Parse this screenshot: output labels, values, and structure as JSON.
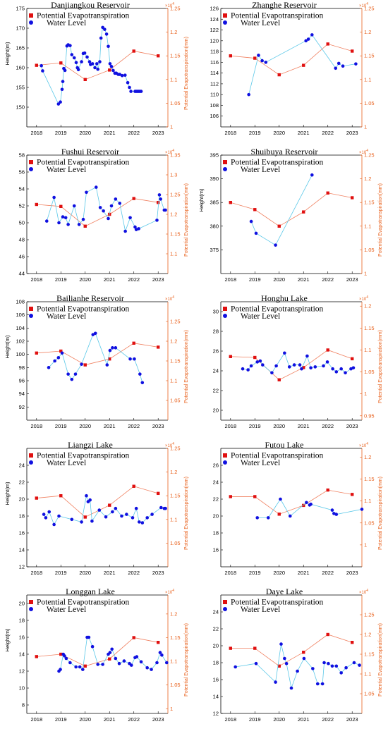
{
  "colors": {
    "water": "#1010e0",
    "water_line": "#5bc8e8",
    "pet": "#e01010",
    "pet_line": "#f08060",
    "right_axis": "#e8601c"
  },
  "chart_data": [
    {
      "type": "line",
      "title": "Danjiangkou Reservoir",
      "ylabel": "Height(m)",
      "y2label": "Potential Evapotranspiration(mm)",
      "y2exponent": "10^4",
      "xlim": [
        2017.6,
        2023.4
      ],
      "xticks": [
        2018,
        2019,
        2020,
        2021,
        2022,
        2023
      ],
      "ylim": [
        145,
        175
      ],
      "yticks": [
        150,
        155,
        160,
        165,
        170,
        175
      ],
      "y2lim": [
        1.0,
        1.25
      ],
      "y2ticks": [
        1,
        1.05,
        1.1,
        1.15,
        1.2,
        1.25
      ],
      "legend": [
        "Potential Evapotranspiration",
        "Water Level"
      ],
      "water_level": {
        "name": "Water Level",
        "x": [
          2018.2,
          2018.25,
          2018.9,
          2018.98,
          2019.05,
          2019.08,
          2019.12,
          2019.17,
          2019.25,
          2019.3,
          2019.38,
          2019.45,
          2019.55,
          2019.63,
          2019.68,
          2019.72,
          2019.85,
          2019.92,
          2019.98,
          2020.08,
          2020.18,
          2020.22,
          2020.3,
          2020.4,
          2020.48,
          2020.52,
          2020.6,
          2020.65,
          2020.72,
          2020.8,
          2020.88,
          2020.95,
          2021.02,
          2021.08,
          2021.15,
          2021.22,
          2021.28,
          2021.36,
          2021.42,
          2021.52,
          2021.64,
          2021.75,
          2021.82,
          2021.88,
          2022.05,
          2022.1,
          2022.15,
          2022.2,
          2022.25,
          2022.3
        ],
        "y": [
          160.5,
          159.2,
          150.8,
          151.3,
          154.5,
          156.5,
          159.8,
          159.3,
          165.5,
          165.8,
          165.6,
          163.3,
          162.5,
          161.3,
          160,
          159.5,
          161.5,
          163.6,
          163.7,
          162.7,
          161.5,
          160.8,
          161,
          160,
          161,
          159.6,
          161.5,
          167.5,
          170.2,
          169.7,
          168.5,
          165.4,
          161,
          160.3,
          159.3,
          158.6,
          158.6,
          158.3,
          158.3,
          158,
          158.1,
          156.2,
          155,
          154,
          154,
          154,
          154,
          154,
          154,
          154
        ]
      },
      "evap": {
        "name": "Potential Evapotranspiration",
        "x": [
          2018.0,
          2019.0,
          2020.0,
          2021.0,
          2022.0,
          2023.0
        ],
        "y": [
          1.13,
          1.135,
          1.1,
          1.12,
          1.16,
          1.15
        ]
      }
    },
    {
      "type": "line",
      "title": "Zhanghe Reservoir",
      "ylabel": "",
      "y2label": "",
      "y2exponent": "10^4",
      "xlim": [
        2017.6,
        2023.4
      ],
      "xticks": [
        2018,
        2019,
        2020,
        2021,
        2022,
        2023
      ],
      "ylim": [
        104,
        126
      ],
      "yticks": [
        106,
        108,
        110,
        112,
        114,
        116,
        118,
        120,
        122,
        124,
        126
      ],
      "y2lim": [
        1.0,
        1.25
      ],
      "y2ticks": [
        1,
        1.05,
        1.1,
        1.15,
        1.2,
        1.25
      ],
      "legend": [
        "Potential Evapotranspiration",
        "Water Level"
      ],
      "water_level": {
        "name": "Water Level",
        "x": [
          2018.75,
          2019.15,
          2019.3,
          2019.45,
          2021.1,
          2021.2,
          2021.35,
          2022.32,
          2022.45,
          2022.62,
          2023.15
        ],
        "y": [
          110,
          117.3,
          116.3,
          116,
          120,
          120.3,
          121.1,
          114.9,
          115.8,
          115.3,
          115.7
        ]
      },
      "evap": {
        "name": "Potential Evapotranspiration",
        "x": [
          2018.0,
          2019.0,
          2020.0,
          2021.0,
          2022.0,
          2023.0
        ],
        "y": [
          1.15,
          1.145,
          1.11,
          1.13,
          1.175,
          1.16
        ]
      }
    },
    {
      "type": "line",
      "title": "Fushui Reservoir",
      "ylabel": "",
      "y2label": "Potential Evapotranspiration(mm)",
      "y2exponent": "10^4",
      "xlim": [
        2017.6,
        2023.4
      ],
      "xticks": [
        2018,
        2019,
        2020,
        2021,
        2022,
        2023
      ],
      "ylim": [
        44,
        58
      ],
      "yticks": [
        44,
        46,
        48,
        50,
        52,
        54,
        56,
        58
      ],
      "y2lim": [
        1.05,
        1.35
      ],
      "y2ticks": [
        1.1,
        1.15,
        1.2,
        1.25,
        1.3,
        1.35
      ],
      "legend": [
        "Potential Evapotranspiration",
        "Water Level"
      ],
      "water_level": {
        "name": "Water Level",
        "x": [
          2018.42,
          2018.72,
          2018.92,
          2019.08,
          2019.2,
          2019.3,
          2019.55,
          2019.75,
          2019.92,
          2020.05,
          2020.45,
          2020.62,
          2020.75,
          2020.95,
          2021.08,
          2021.25,
          2021.42,
          2021.65,
          2021.85,
          2022.05,
          2022.1,
          2022.2,
          2022.95,
          2023.05,
          2023.1,
          2023.25,
          2023.3
        ],
        "y": [
          50.2,
          53,
          50,
          50.7,
          50.6,
          49.8,
          52,
          49.8,
          50.4,
          53.6,
          54.2,
          51.8,
          51.4,
          50.5,
          52,
          52.8,
          52.3,
          49,
          50.6,
          49.5,
          49.2,
          49.3,
          50.3,
          53.3,
          52.8,
          51.5,
          51.5
        ]
      },
      "evap": {
        "name": "Potential Evapotranspiration",
        "x": [
          2018.0,
          2019.0,
          2020.0,
          2021.0,
          2022.0,
          2023.0
        ],
        "y": [
          1.225,
          1.22,
          1.17,
          1.2,
          1.24,
          1.23
        ]
      }
    },
    {
      "type": "line",
      "title": "Shuibuya Reservoir",
      "ylabel": "Height(m)",
      "y2label": "Potential Evapotranspiration(mm)",
      "y2exponent": "10^4",
      "xlim": [
        2017.6,
        2023.4
      ],
      "xticks": [
        2018,
        2019,
        2020,
        2021,
        2022,
        2023
      ],
      "ylim": [
        370,
        395
      ],
      "yticks": [
        375,
        380,
        385,
        390,
        395
      ],
      "y2lim": [
        1.0,
        1.25
      ],
      "y2ticks": [
        1,
        1.05,
        1.1,
        1.15,
        1.2,
        1.25
      ],
      "legend": [
        "Potential Evapotranspiration",
        "Water Level"
      ],
      "water_level": {
        "name": "Water Level",
        "x": [
          2018.85,
          2019.05,
          2019.85,
          2021.35
        ],
        "y": [
          381,
          378.5,
          376,
          390.8
        ]
      },
      "evap": {
        "name": "Potential Evapotranspiration",
        "x": [
          2018.0,
          2019.0,
          2020.0,
          2021.0,
          2022.0,
          2023.0
        ],
        "y": [
          1.15,
          1.135,
          1.1,
          1.13,
          1.17,
          1.16
        ]
      }
    },
    {
      "type": "line",
      "title": "Bailianhe Reservoir",
      "ylabel": "Height(m)",
      "y2label": "Potential Evapotranspiration(mm)",
      "y2exponent": "10^4",
      "xlim": [
        2017.6,
        2023.4
      ],
      "xticks": [
        2018,
        2019,
        2020,
        2021,
        2022,
        2023
      ],
      "ylim": [
        90,
        108
      ],
      "yticks": [
        92,
        94,
        96,
        98,
        100,
        102,
        104,
        106,
        108
      ],
      "y2lim": [
        1.0,
        1.3
      ],
      "y2ticks": [
        1.05,
        1.1,
        1.15,
        1.2,
        1.25
      ],
      "legend": [
        "Potential Evapotranspiration",
        "Water Level"
      ],
      "water_level": {
        "name": "Water Level",
        "x": [
          2018.5,
          2018.75,
          2018.9,
          2019.05,
          2019.3,
          2019.45,
          2019.6,
          2019.85,
          2020.32,
          2020.42,
          2020.9,
          2021.02,
          2021.12,
          2021.25,
          2021.85,
          2022.02,
          2022.25,
          2022.35
        ],
        "y": [
          98,
          99,
          99.5,
          100.2,
          97,
          96.2,
          97,
          98.5,
          103,
          103.2,
          98.4,
          100.6,
          101,
          101,
          99.3,
          99.3,
          97,
          95.7
        ]
      },
      "evap": {
        "name": "Potential Evapotranspiration",
        "x": [
          2018.0,
          2019.0,
          2020.0,
          2021.0,
          2022.0,
          2023.0
        ],
        "y": [
          1.17,
          1.175,
          1.14,
          1.155,
          1.195,
          1.185
        ]
      }
    },
    {
      "type": "line",
      "title": "Honghu Lake",
      "ylabel": "",
      "y2label": "Potential Evapotranspiration(mm)",
      "y2exponent": "10^4",
      "xlim": [
        2017.6,
        2023.4
      ],
      "xticks": [
        2018,
        2019,
        2020,
        2021,
        2022,
        2023
      ],
      "ylim": [
        19,
        31
      ],
      "yticks": [
        20,
        22,
        24,
        26,
        28,
        30
      ],
      "y2lim": [
        0.94,
        1.21
      ],
      "y2ticks": [
        0.95,
        1,
        1.05,
        1.1,
        1.15,
        1.2
      ],
      "legend": [
        "Potential Evapotranspiration",
        "Water Level"
      ],
      "water_level": {
        "name": "Water Level",
        "x": [
          2018.5,
          2018.72,
          2018.85,
          2019.1,
          2019.22,
          2019.32,
          2019.7,
          2019.88,
          2020.22,
          2020.42,
          2020.62,
          2020.85,
          2020.92,
          2021.15,
          2021.3,
          2021.48,
          2021.82,
          2021.98,
          2022.2,
          2022.35,
          2022.55,
          2022.72,
          2022.95,
          2023.05
        ],
        "y": [
          24.2,
          24.1,
          24.5,
          24.9,
          25,
          24.6,
          23.8,
          24.5,
          25.8,
          24.4,
          24.6,
          24.6,
          24.2,
          25.5,
          24.3,
          24.4,
          24.5,
          24.9,
          24.2,
          23.9,
          24.2,
          23.8,
          24.2,
          24.3
        ]
      },
      "evap": {
        "name": "Potential Evapotranspiration",
        "x": [
          2018.0,
          2019.0,
          2020.0,
          2021.0,
          2022.0,
          2023.0
        ],
        "y": [
          1.085,
          1.083,
          1.032,
          1.06,
          1.1,
          1.08
        ]
      }
    },
    {
      "type": "line",
      "title": "Liangzi Lake",
      "ylabel": "Height(m)",
      "y2label": "Potential Evapotranspiration(mm)",
      "y2exponent": "10^4",
      "xlim": [
        2017.6,
        2023.4
      ],
      "xticks": [
        2018,
        2019,
        2020,
        2021,
        2022,
        2023
      ],
      "ylim": [
        12,
        26
      ],
      "yticks": [
        12,
        14,
        16,
        18,
        20,
        22,
        24
      ],
      "y2lim": [
        1.0,
        1.25
      ],
      "y2ticks": [
        1.05,
        1.1,
        1.15,
        1.2,
        1.25
      ],
      "legend": [
        "Potential Evapotranspiration",
        "Water Level"
      ],
      "water_level": {
        "name": "Water Level",
        "x": [
          2018.3,
          2018.38,
          2018.52,
          2018.72,
          2018.92,
          2019.45,
          2019.85,
          2020.05,
          2020.12,
          2020.2,
          2020.28,
          2020.58,
          2020.85,
          2021.12,
          2021.25,
          2021.5,
          2021.7,
          2021.95,
          2022.1,
          2022.22,
          2022.35,
          2022.55,
          2022.75,
          2023.12,
          2023.25,
          2023.3
        ],
        "y": [
          18.2,
          17.8,
          18.5,
          17,
          18,
          17.6,
          17.3,
          20.4,
          19.7,
          19.9,
          17.4,
          18.7,
          17.9,
          18.5,
          18.9,
          18,
          18.2,
          17.8,
          18.9,
          17.3,
          17.2,
          17.8,
          18.2,
          19,
          18.9,
          18.9
        ]
      },
      "evap": {
        "name": "Potential Evapotranspiration",
        "x": [
          2018.0,
          2019.0,
          2020.0,
          2021.0,
          2022.0,
          2023.0
        ],
        "y": [
          1.145,
          1.15,
          1.105,
          1.13,
          1.17,
          1.155
        ]
      }
    },
    {
      "type": "line",
      "title": "Futou Lake",
      "ylabel": "",
      "y2label": "Potential Evapotranspiration(mm)",
      "y2exponent": "10^4",
      "xlim": [
        2017.6,
        2023.4
      ],
      "xticks": [
        2018,
        2019,
        2020,
        2021,
        2022,
        2023
      ],
      "ylim": [
        14,
        28
      ],
      "yticks": [
        16,
        18,
        20,
        22,
        24,
        26
      ],
      "y2lim": [
        0.95,
        1.22
      ],
      "y2ticks": [
        1,
        1.05,
        1.1,
        1.15,
        1.2
      ],
      "legend": [
        "Potential Evapotranspiration",
        "Water Level"
      ],
      "water_level": {
        "name": "Water Level",
        "x": [
          2019.1,
          2019.55,
          2020.05,
          2020.45,
          2021.12,
          2021.25,
          2021.3,
          2022.18,
          2022.25,
          2022.35,
          2023.4
        ],
        "y": [
          19.8,
          19.8,
          22,
          20,
          21.6,
          21.3,
          21.4,
          20.7,
          20.3,
          20.2,
          20.8
        ]
      },
      "evap": {
        "name": "Potential Evapotranspiration",
        "x": [
          2018.0,
          2019.0,
          2020.0,
          2021.0,
          2022.0,
          2023.0
        ],
        "y": [
          1.11,
          1.11,
          1.07,
          1.09,
          1.125,
          1.115
        ]
      }
    },
    {
      "type": "line",
      "title": "Longgan Lake",
      "ylabel": "Height(m)",
      "y2label": "Potential Evapotranspiration(mm)",
      "y2exponent": "10^4",
      "xlim": [
        2017.6,
        2023.4
      ],
      "xticks": [
        2018,
        2019,
        2020,
        2021,
        2022,
        2023
      ],
      "ylim": [
        7,
        21
      ],
      "yticks": [
        8,
        10,
        12,
        14,
        16,
        18,
        20
      ],
      "y2lim": [
        0.99,
        1.24
      ],
      "y2ticks": [
        1,
        1.05,
        1.1,
        1.15,
        1.2
      ],
      "legend": [
        "Potential Evapotranspiration",
        "Water Level"
      ],
      "water_level": {
        "name": "Water Level",
        "x": [
          2018.92,
          2018.98,
          2019.1,
          2019.15,
          2019.22,
          2019.38,
          2019.62,
          2019.78,
          2019.9,
          2020.08,
          2020.15,
          2020.3,
          2020.52,
          2020.72,
          2020.95,
          2021.02,
          2021.1,
          2021.25,
          2021.4,
          2021.6,
          2021.82,
          2021.9,
          2022.05,
          2022.12,
          2022.3,
          2022.55,
          2022.72,
          2022.95,
          2023.08,
          2023.15,
          2023.35
        ],
        "y": [
          12,
          12.2,
          14,
          13.8,
          13.5,
          13,
          12.5,
          12.5,
          12.2,
          16,
          16,
          14.9,
          12.8,
          12.8,
          14,
          14.2,
          14.6,
          13.5,
          12.9,
          13.2,
          12.9,
          12.7,
          13.6,
          13.7,
          13.1,
          12.4,
          12.2,
          13,
          14.2,
          13.9,
          13
        ]
      },
      "evap": {
        "name": "Potential Evapotranspiration",
        "x": [
          2018.0,
          2019.0,
          2020.0,
          2021.0,
          2022.0,
          2023.0
        ],
        "y": [
          1.11,
          1.115,
          1.09,
          1.105,
          1.15,
          1.14
        ]
      }
    },
    {
      "type": "line",
      "title": "Daye Lake",
      "ylabel": "",
      "y2label": "Potential Evapotranspiration(mm)",
      "y2exponent": "10^4",
      "xlim": [
        2017.6,
        2023.4
      ],
      "xticks": [
        2018,
        2019,
        2020,
        2021,
        2022,
        2023
      ],
      "ylim": [
        12,
        26
      ],
      "yticks": [
        12,
        14,
        16,
        18,
        20,
        22,
        24
      ],
      "y2lim": [
        1.0,
        1.3
      ],
      "y2ticks": [
        1.05,
        1.1,
        1.15,
        1.2,
        1.25
      ],
      "legend": [
        "Potential Evapotranspiration",
        "Water Level"
      ],
      "water_level": {
        "name": "Water Level",
        "x": [
          2018.2,
          2019.05,
          2019.85,
          2020.08,
          2020.22,
          2020.3,
          2020.5,
          2020.75,
          2021.02,
          2021.38,
          2021.58,
          2021.78,
          2021.85,
          2022.02,
          2022.18,
          2022.35,
          2022.55,
          2022.75,
          2023.08,
          2023.3
        ],
        "y": [
          17.5,
          17.9,
          15.7,
          20.2,
          18.5,
          17.9,
          15,
          17,
          18.5,
          17.3,
          15.5,
          15.5,
          18,
          17.9,
          17.6,
          17.6,
          16.8,
          17.4,
          18,
          17.7
        ]
      },
      "evap": {
        "name": "Potential Evapotranspiration",
        "x": [
          2018.0,
          2019.0,
          2020.0,
          2021.0,
          2022.0,
          2023.0
        ],
        "y": [
          1.165,
          1.165,
          1.12,
          1.155,
          1.2,
          1.18
        ]
      }
    }
  ]
}
